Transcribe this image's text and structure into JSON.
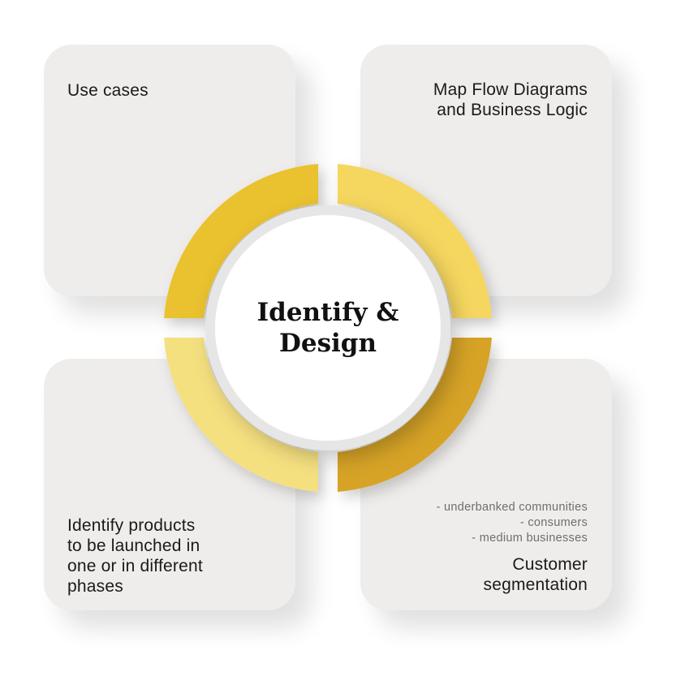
{
  "center": {
    "title_line1": "Identify &",
    "title_line2": "Design"
  },
  "cards": {
    "top_left": {
      "title": "Use cases"
    },
    "top_right": {
      "title_line1": "Map Flow Diagrams",
      "title_line2": "and Business Logic"
    },
    "bottom_left": {
      "title_line1": "Identify products",
      "title_line2": "to be launched in",
      "title_line3": "one or in different",
      "title_line4": "phases"
    },
    "bottom_right": {
      "items": [
        "- underbanked communities",
        "- consumers",
        "- medium businesses"
      ],
      "title_line1": "Customer",
      "title_line2": "segmentation"
    }
  },
  "colors": {
    "card_bg": "#efedeb",
    "segment_top_left": "#eac12d",
    "segment_top_right": "#f5d65e",
    "segment_bottom_left": "#f5e080",
    "segment_bottom_right": "#d6a325",
    "center_fill": "#ffffff",
    "center_ring": "#e6e6e6"
  }
}
